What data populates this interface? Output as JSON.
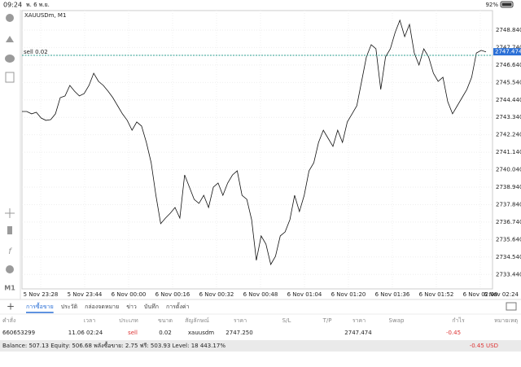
{
  "status_bar": {
    "time": "09:24",
    "date": "พ. 6 พ.ย.",
    "battery": "92%"
  },
  "chart_data": {
    "type": "line",
    "title": "XAUUSDm, M1",
    "color": "#111111",
    "values": [
      2743.71,
      2743.71,
      2743.56,
      2743.66,
      2743.3,
      2743.15,
      2743.2,
      2743.56,
      2744.58,
      2744.69,
      2745.35,
      2744.99,
      2744.69,
      2744.84,
      2745.35,
      2746.12,
      2745.61,
      2745.35,
      2744.99,
      2744.58,
      2744.07,
      2743.56,
      2743.15,
      2742.53,
      2743.05,
      2742.79,
      2741.76,
      2740.48,
      2738.43,
      2736.64,
      2736.99,
      2737.3,
      2737.66,
      2736.99,
      2739.71,
      2738.94,
      2738.17,
      2737.92,
      2738.43,
      2737.66,
      2738.94,
      2739.2,
      2738.43,
      2739.2,
      2739.71,
      2739.97,
      2738.43,
      2738.17,
      2736.89,
      2734.33,
      2735.87,
      2735.35,
      2734.07,
      2734.58,
      2735.87,
      2736.12,
      2736.89,
      2738.43,
      2737.4,
      2738.43,
      2739.97,
      2740.48,
      2741.76,
      2742.53,
      2742.02,
      2741.51,
      2742.53,
      2741.76,
      2743.05,
      2743.56,
      2744.07,
      2745.61,
      2747.15,
      2747.92,
      2747.66,
      2745.1,
      2747.15,
      2747.66,
      2748.69,
      2749.46,
      2748.43,
      2749.2,
      2747.4,
      2746.64,
      2747.66,
      2747.15,
      2746.12,
      2745.61,
      2745.87,
      2744.33,
      2743.56,
      2744.07,
      2744.58,
      2745.1,
      2745.87,
      2747.4,
      2747.56,
      2747.47
    ],
    "x_labels": [
      "5 Nov 23:28",
      "5 Nov 23:44",
      "6 Nov 00:00",
      "6 Nov 00:16",
      "6 Nov 00:32",
      "6 Nov 00:48",
      "6 Nov 01:04",
      "6 Nov 01:20",
      "6 Nov 01:36",
      "6 Nov 01:52",
      "6 Nov 02:08",
      "6 Nov 02:24"
    ],
    "ylim": [
      2732.53,
      2750.07
    ],
    "yticks": [
      {
        "value": 2733.44,
        "label": "2733.440"
      },
      {
        "value": 2734.54,
        "label": "2734.540"
      },
      {
        "value": 2735.64,
        "label": "2735.640"
      },
      {
        "value": 2736.74,
        "label": "2736.740"
      },
      {
        "value": 2737.84,
        "label": "2737.840"
      },
      {
        "value": 2738.94,
        "label": "2738.940"
      },
      {
        "value": 2740.04,
        "label": "2740.040"
      },
      {
        "value": 2741.14,
        "label": "2741.140"
      },
      {
        "value": 2742.24,
        "label": "2742.240"
      },
      {
        "value": 2743.34,
        "label": "2743.340"
      },
      {
        "value": 2744.44,
        "label": "2744.440"
      },
      {
        "value": 2745.54,
        "label": "2745.540"
      },
      {
        "value": 2746.64,
        "label": "2746.640"
      },
      {
        "value": 2747.74,
        "label": "2747.740"
      },
      {
        "value": 2748.84,
        "label": "2748.840"
      }
    ],
    "grid": true,
    "order_line": {
      "label": "sell 0.02",
      "value": 2747.25
    },
    "current_price": 2747.474,
    "timeframe": "M1"
  },
  "tabs": [
    "การซื้อขาย",
    "ประวัติ",
    "กล่องจดหมาย",
    "ข่าว",
    "บันทึก",
    "การตั้งค่า"
  ],
  "table_headers": [
    "คำสั่ง",
    "เวลา",
    "ประเภท",
    "ขนาด",
    "สัญลักษณ์",
    "ราคา",
    "S/L",
    "T/P",
    "ราคา",
    "Swap",
    "กำไร",
    "หมายเหตุ"
  ],
  "positions": [
    {
      "ticket": "660653299",
      "time": "11.06 02:24",
      "type": "sell",
      "volume": "0.02",
      "symbol": "xauusdm",
      "open_price": "2747.250",
      "current_price": "2747.474",
      "profit": "-0.45"
    }
  ],
  "account": {
    "summary": "Balance: 507.13 Equity: 506.68 พลังซื้อขาย: 2.75 ฟรี: 503.93 Level: 18 443.17%",
    "total": "-0.45  USD"
  }
}
